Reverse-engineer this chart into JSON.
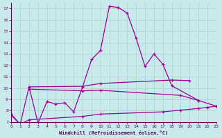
{
  "xlabel": "Windchill (Refroidissement éolien,°C)",
  "background_color": "#c8eaea",
  "grid_color": "#b0cccc",
  "line_color": "#990099",
  "xlim": [
    0,
    23
  ],
  "ylim": [
    7,
    17.5
  ],
  "xticks": [
    0,
    1,
    2,
    3,
    4,
    5,
    6,
    7,
    8,
    9,
    10,
    11,
    12,
    13,
    14,
    15,
    16,
    17,
    18,
    19,
    20,
    21,
    22,
    23
  ],
  "yticks": [
    7,
    8,
    9,
    10,
    11,
    12,
    13,
    14,
    15,
    16,
    17
  ],
  "peak_line": {
    "x": [
      0,
      1,
      2,
      3,
      4,
      5,
      6,
      7,
      8,
      9,
      10,
      11,
      12,
      13,
      14,
      15,
      16,
      17,
      18,
      21
    ],
    "y": [
      7.7,
      6.8,
      10.1,
      6.9,
      8.8,
      8.6,
      8.7,
      7.9,
      10.1,
      12.5,
      13.3,
      17.2,
      17.1,
      16.6,
      14.4,
      11.9,
      13.0,
      12.1,
      10.2,
      8.9
    ]
  },
  "upper_line": {
    "x": [
      2,
      8,
      10,
      18,
      20
    ],
    "y": [
      10.1,
      10.15,
      10.4,
      10.7,
      10.65
    ]
  },
  "mid_line": {
    "x": [
      2,
      8,
      10,
      19,
      21,
      23
    ],
    "y": [
      9.9,
      9.75,
      9.8,
      9.35,
      8.9,
      8.4
    ]
  },
  "lower_line": {
    "x": [
      0,
      1,
      2,
      8,
      10,
      17,
      19,
      21,
      22,
      23
    ],
    "y": [
      7.6,
      6.8,
      7.2,
      7.5,
      7.7,
      7.9,
      8.05,
      8.2,
      8.3,
      8.4
    ]
  }
}
